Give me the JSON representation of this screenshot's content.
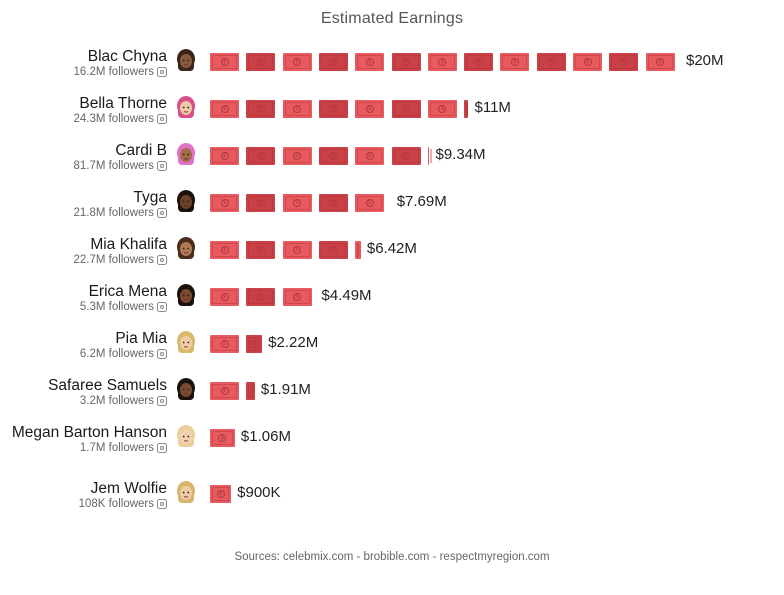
{
  "title": "Estimated Earnings",
  "source": "Sources: celebmix.com - brobible.com - respectmyregion.com",
  "colors": {
    "bill": "#e65a60",
    "bill_dark": "#c94047",
    "text": "#222222"
  },
  "chart_data": {
    "type": "bar",
    "orientation": "horizontal",
    "title": "Estimated Earnings",
    "xlabel": "",
    "ylabel": "",
    "unit": "USD",
    "xlim": [
      0,
      20000000
    ],
    "grid": false,
    "categories": [
      "Blac Chyna",
      "Bella Thorne",
      "Cardi B",
      "Tyga",
      "Mia Khalifa",
      "Erica Mena",
      "Pia Mia",
      "Safaree Samuels",
      "Megan Barton Hanson",
      "Jem Wolfie"
    ],
    "followers": [
      "16.2M followers",
      "24.3M followers",
      "81.7M followers",
      "21.8M followers",
      "22.7M followers",
      "5.3M followers",
      "6.2M followers",
      "3.2M followers",
      "1.7M followers",
      "108K followers"
    ],
    "values": [
      20000000,
      11000000,
      9340000,
      7690000,
      6420000,
      4490000,
      2220000,
      1910000,
      1060000,
      900000
    ],
    "value_labels": [
      "$20M",
      "$11M",
      "$9.34M",
      "$7.69M",
      "$6.42M",
      "$4.49M",
      "$2.22M",
      "$1.91M",
      "$1.06M",
      "$900K"
    ],
    "avatar_icons": [
      "emoji-avatar-dark-hair-icon",
      "emoji-avatar-pink-hair-icon",
      "emoji-avatar-pink-braids-icon",
      "emoji-avatar-man-dark-icon",
      "emoji-avatar-woman-brown-icon",
      "emoji-avatar-woman-dark-icon",
      "emoji-avatar-blonde-icon",
      "emoji-avatar-man-beard-icon",
      "emoji-avatar-blonde-light-icon",
      "emoji-avatar-blonde-icon"
    ],
    "avatar_colors": [
      {
        "hair": "#3b2418",
        "skin": "#8a5a3c"
      },
      {
        "hair": "#d64f8a",
        "skin": "#f0c7a4"
      },
      {
        "hair": "#e070c8",
        "skin": "#a56b4a"
      },
      {
        "hair": "#1e1208",
        "skin": "#6b4227"
      },
      {
        "hair": "#4a2d1c",
        "skin": "#b27a55"
      },
      {
        "hair": "#1b110b",
        "skin": "#7b4a2e"
      },
      {
        "hair": "#d8b96a",
        "skin": "#f1cda8"
      },
      {
        "hair": "#1c120c",
        "skin": "#7a4b2e"
      },
      {
        "hair": "#e9cf9a",
        "skin": "#f3d2b4"
      },
      {
        "hair": "#d9b46c",
        "skin": "#f1cba4"
      }
    ]
  }
}
